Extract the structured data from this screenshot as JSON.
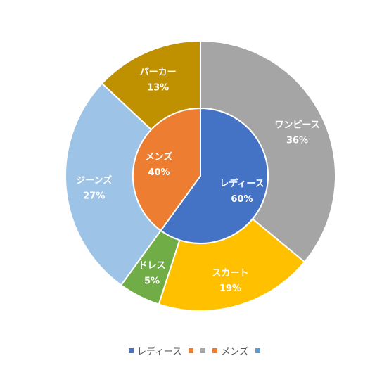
{
  "chart_data": {
    "type": "pie",
    "subtype": "nested-doughnut",
    "inner_ring": {
      "slices": [
        {
          "label": "レディース",
          "value": 60,
          "value_label": "60%",
          "color": "#4472C4"
        },
        {
          "label": "メンズ",
          "value": 40,
          "value_label": "40%",
          "color": "#ED7D31"
        }
      ]
    },
    "outer_ring": {
      "slices": [
        {
          "label": "ワンピース",
          "value": 36,
          "value_label": "36%",
          "color": "#A5A5A5"
        },
        {
          "label": "スカート",
          "value": 19,
          "value_label": "19%",
          "color": "#FFC000"
        },
        {
          "label": "ドレス",
          "value": 5,
          "value_label": "5%",
          "color": "#70AD47"
        },
        {
          "label": "ジーンズ",
          "value": 27,
          "value_label": "27%",
          "color": "#9DC3E6"
        },
        {
          "label": "パーカー",
          "value": 13,
          "value_label": "13%",
          "color": "#BF9000"
        }
      ]
    },
    "legend": {
      "placement": "bottom",
      "items": [
        {
          "label": "レディース",
          "color": "#4472C4"
        },
        {
          "label": "",
          "color": "#ED7D31"
        },
        {
          "label": "",
          "color": "#A5A5A5"
        },
        {
          "label": "メンズ",
          "color": "#ED7D31"
        },
        {
          "label": "",
          "color": "#5B9BD5"
        }
      ]
    }
  }
}
